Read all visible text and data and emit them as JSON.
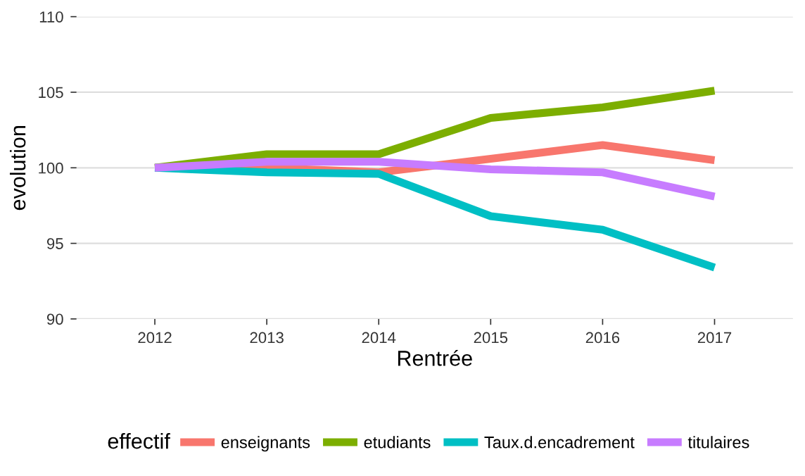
{
  "chart_data": {
    "type": "line",
    "xlabel": "Rentrée",
    "ylabel": "evolution",
    "legend_title": "effectif",
    "legend": "bottom",
    "grid": "y",
    "line_style": "solid",
    "x": [
      2012,
      2013,
      2014,
      2015,
      2016,
      2017
    ],
    "xlim": [
      2011.3,
      2017.7
    ],
    "xticks": [
      2012,
      2013,
      2014,
      2015,
      2016,
      2017
    ],
    "ylim": [
      90,
      110
    ],
    "yticks": [
      90,
      95,
      100,
      105,
      110
    ],
    "series": [
      {
        "name": "enseignants",
        "color": "#f8766d",
        "values": [
          100,
          100,
          99.7,
          100.6,
          101.5,
          100.5
        ]
      },
      {
        "name": "etudiants",
        "color": "#7cae00",
        "values": [
          100,
          100.9,
          100.9,
          103.3,
          104.0,
          105.1
        ]
      },
      {
        "name": "Taux.d.encadrement",
        "color": "#00bfc4",
        "values": [
          100,
          99.7,
          99.6,
          96.8,
          95.9,
          93.4
        ]
      },
      {
        "name": "titulaires",
        "color": "#c77cff",
        "values": [
          100,
          100.4,
          100.4,
          99.9,
          99.7,
          98.1
        ]
      }
    ]
  }
}
